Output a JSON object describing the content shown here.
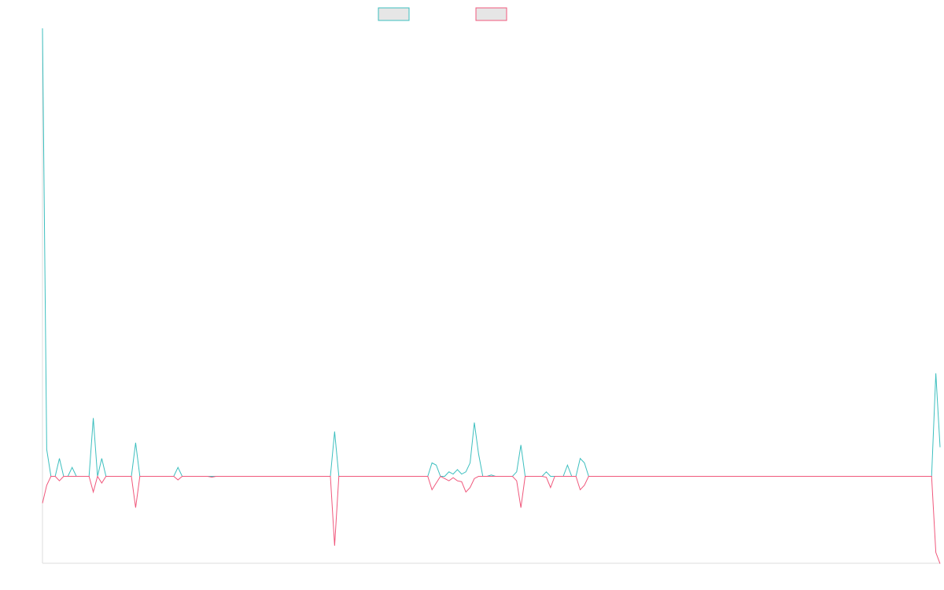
{
  "chart_data": {
    "type": "line",
    "title": "",
    "xlabel": "",
    "ylabel": "",
    "legend_position": "top-center",
    "grid": false,
    "x_count": 213,
    "ylim": [
      -20,
      105
    ],
    "colors": {
      "series_a": "#3dbfbf",
      "series_b": "#f0587c",
      "legend_fill": "#e6e6e6",
      "axis": "#dddddd"
    },
    "series": [
      {
        "key": "a",
        "spikes": [
          [
            0,
            100
          ],
          [
            1,
            6
          ],
          [
            4,
            4
          ],
          [
            7,
            2
          ],
          [
            12,
            13
          ],
          [
            14,
            4
          ],
          [
            22,
            7.5
          ],
          [
            32,
            2
          ],
          [
            69,
            10
          ],
          [
            92,
            3
          ],
          [
            93,
            2.5
          ],
          [
            96,
            1
          ],
          [
            97,
            0.5
          ],
          [
            98,
            1.5
          ],
          [
            99,
            0.5
          ],
          [
            100,
            1
          ],
          [
            101,
            3
          ],
          [
            102,
            12
          ],
          [
            103,
            5
          ],
          [
            106,
            0.3
          ],
          [
            112,
            1
          ],
          [
            113,
            7
          ],
          [
            119,
            1
          ],
          [
            124,
            2.5
          ],
          [
            127,
            4
          ],
          [
            128,
            3
          ],
          [
            211,
            23
          ],
          [
            212,
            6.5
          ]
        ]
      },
      {
        "key": "b",
        "spikes": [
          [
            0,
            -6
          ],
          [
            1,
            -2
          ],
          [
            4,
            -1
          ],
          [
            12,
            -3.5
          ],
          [
            14,
            -1.5
          ],
          [
            22,
            -7
          ],
          [
            32,
            -0.8
          ],
          [
            40,
            -0.2
          ],
          [
            69,
            -15.5
          ],
          [
            92,
            -3
          ],
          [
            93,
            -1.5
          ],
          [
            95,
            -0.5
          ],
          [
            96,
            -1
          ],
          [
            97,
            -0.3
          ],
          [
            98,
            -1
          ],
          [
            99,
            -1.2
          ],
          [
            100,
            -3.5
          ],
          [
            101,
            -2.5
          ],
          [
            102,
            -0.5
          ],
          [
            112,
            -1
          ],
          [
            113,
            -7
          ],
          [
            119,
            -0.2
          ],
          [
            120,
            -2.5
          ],
          [
            127,
            -3
          ],
          [
            128,
            -2
          ],
          [
            211,
            -17
          ],
          [
            212,
            -19.5
          ]
        ]
      }
    ]
  }
}
